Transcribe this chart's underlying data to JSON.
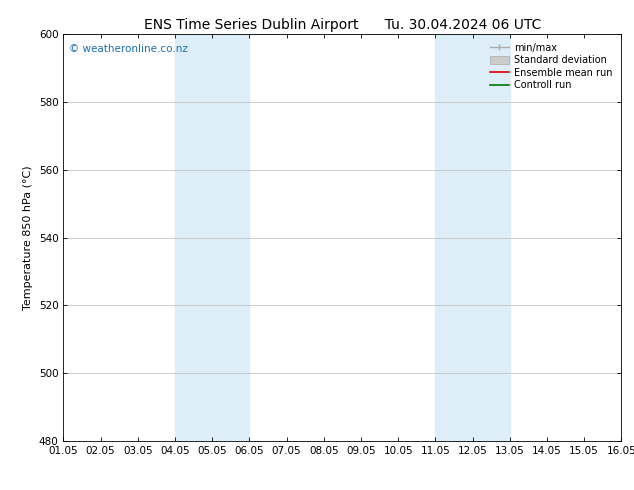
{
  "title": "ENS Time Series Dublin Airport      Tu. 30.04.2024 06 UTC",
  "ylabel": "Temperature 850 hPa (°C)",
  "xlim": [
    1.05,
    16.05
  ],
  "ylim": [
    480,
    600
  ],
  "yticks": [
    480,
    500,
    520,
    540,
    560,
    580,
    600
  ],
  "xtick_labels": [
    "01.05",
    "02.05",
    "03.05",
    "04.05",
    "05.05",
    "06.05",
    "07.05",
    "08.05",
    "09.05",
    "10.05",
    "11.05",
    "12.05",
    "13.05",
    "14.05",
    "15.05",
    "16.05"
  ],
  "xtick_positions": [
    1.05,
    2.05,
    3.05,
    4.05,
    5.05,
    6.05,
    7.05,
    8.05,
    9.05,
    10.05,
    11.05,
    12.05,
    13.05,
    14.05,
    15.05,
    16.05
  ],
  "shaded_bands": [
    {
      "x_start": 4.05,
      "x_end": 6.05
    },
    {
      "x_start": 11.05,
      "x_end": 13.05
    }
  ],
  "shaded_color": "#ddeef8",
  "watermark_text": "© weatheronline.co.nz",
  "watermark_color": "#1a6fb5",
  "background_color": "#ffffff",
  "grid_color": "#bbbbbb",
  "title_fontsize": 10,
  "axis_fontsize": 8,
  "tick_fontsize": 7.5
}
